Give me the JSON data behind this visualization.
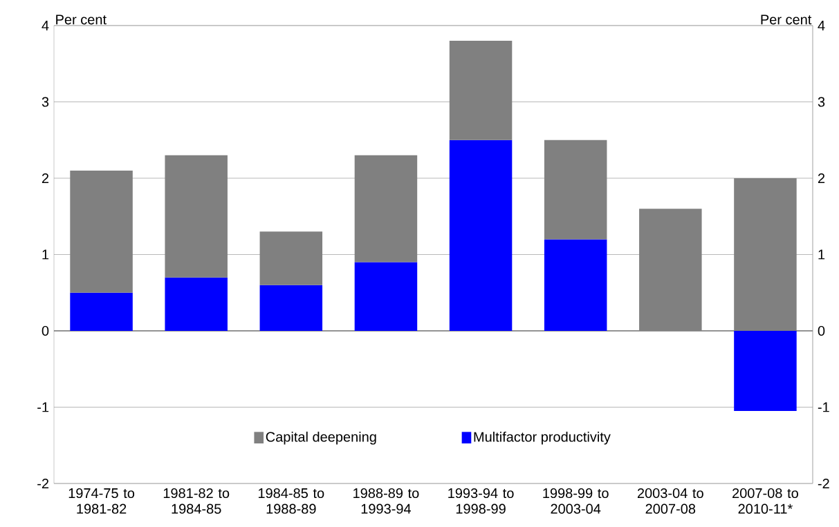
{
  "chart_data": {
    "type": "bar",
    "stacked": true,
    "ylabel": "Per cent",
    "y2label": "Per cent",
    "categories": [
      "1974-75 to 1981-82",
      "1981-82 to 1984-85",
      "1984-85 to 1988-89",
      "1988-89 to 1993-94",
      "1993-94 to 1998-99",
      "1998-99 to 2003-04",
      "2003-04 to 2007-08",
      "2007-08 to 2010-11*"
    ],
    "series": [
      {
        "name": "Multifactor productivity",
        "color": "#0000ff",
        "values": [
          0.5,
          0.7,
          0.6,
          0.9,
          2.5,
          1.2,
          0,
          -1.05
        ]
      },
      {
        "name": "Capital deepening",
        "color": "#808080",
        "values": [
          1.6,
          1.6,
          0.7,
          1.4,
          1.3,
          1.3,
          1.6,
          2.0
        ]
      }
    ],
    "ylim": [
      -2,
      4
    ],
    "yticks": [
      -2,
      -1,
      0,
      1,
      2,
      3,
      4
    ],
    "y2lim": [
      -2,
      4
    ],
    "y2ticks": [
      -2,
      -1,
      0,
      1,
      2,
      3,
      4
    ],
    "grid": "y",
    "legend": "bottom"
  }
}
